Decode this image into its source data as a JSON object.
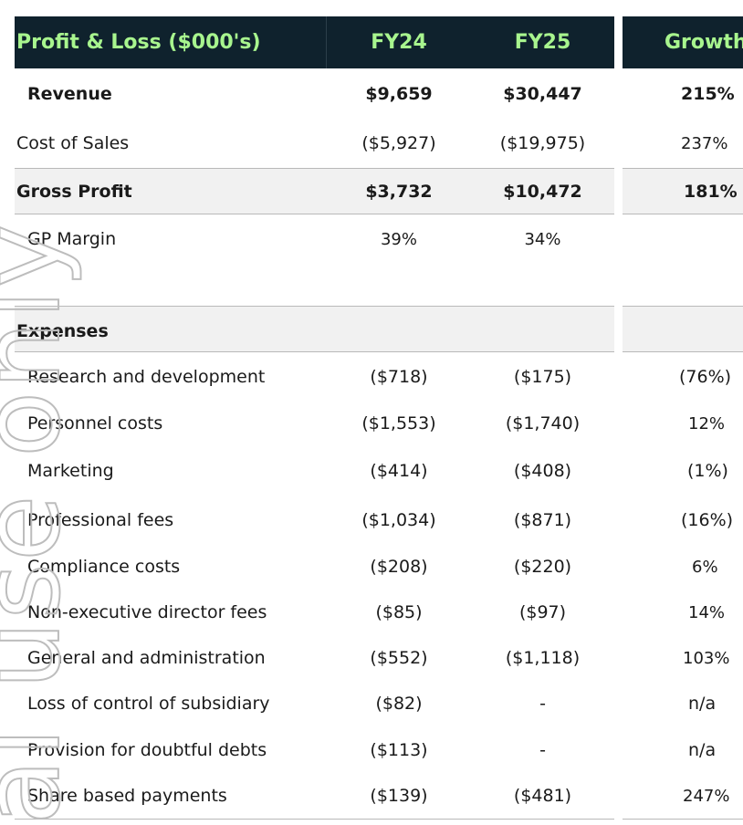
{
  "header": {
    "title": "Profit & Loss ($000's)",
    "fy24": "FY24",
    "fy25": "FY25",
    "growth": "Growth"
  },
  "watermark": {
    "text": "al use only"
  },
  "summary": {
    "revenue": {
      "label": "Revenue",
      "fy24": "$9,659",
      "fy25": "$30,447",
      "growth": "215%"
    },
    "cost_of_sales": {
      "label": "Cost of Sales",
      "fy24": "($5,927)",
      "fy25": "($19,975)",
      "growth": "237%"
    },
    "gross_profit": {
      "label": "Gross Profit",
      "fy24": "$3,732",
      "fy25": "$10,472",
      "growth": "181%"
    },
    "gp_margin": {
      "label": "GP Margin",
      "fy24": "39%",
      "fy25": "34%",
      "growth": ""
    }
  },
  "expenses_heading": "Expenses",
  "expenses": [
    {
      "label": "Research and development",
      "fy24": "($718)",
      "fy25": "($175)",
      "growth": "(76%)"
    },
    {
      "label": "Personnel costs",
      "fy24": "($1,553)",
      "fy25": "($1,740)",
      "growth": "12%"
    },
    {
      "label": "Marketing",
      "fy24": "($414)",
      "fy25": "($408)",
      "growth": "(1%)"
    },
    {
      "label": "Professional fees",
      "fy24": "($1,034)",
      "fy25": "($871)",
      "growth": "(16%)"
    },
    {
      "label": "Compliance costs",
      "fy24": "($208)",
      "fy25": "($220)",
      "growth": "6%"
    },
    {
      "label": "Non-executive director fees",
      "fy24": "($85)",
      "fy25": "($97)",
      "growth": "14%"
    },
    {
      "label": "General and administration",
      "fy24": "($552)",
      "fy25": "($1,118)",
      "growth": "103%"
    },
    {
      "label": "Loss of control of subsidiary",
      "fy24": "($82)",
      "fy25": "-",
      "growth": "n/a"
    },
    {
      "label": "Provision for doubtful debts",
      "fy24": "($113)",
      "fy25": "-",
      "growth": "n/a"
    },
    {
      "label": "Share based payments",
      "fy24": "($139)",
      "fy25": "($481)",
      "growth": "247%"
    }
  ],
  "colors": {
    "header_bg": "#0f222d",
    "header_text": "#a8f58e",
    "shade": "#f1f1f1",
    "rule": "#b9b9b9"
  }
}
